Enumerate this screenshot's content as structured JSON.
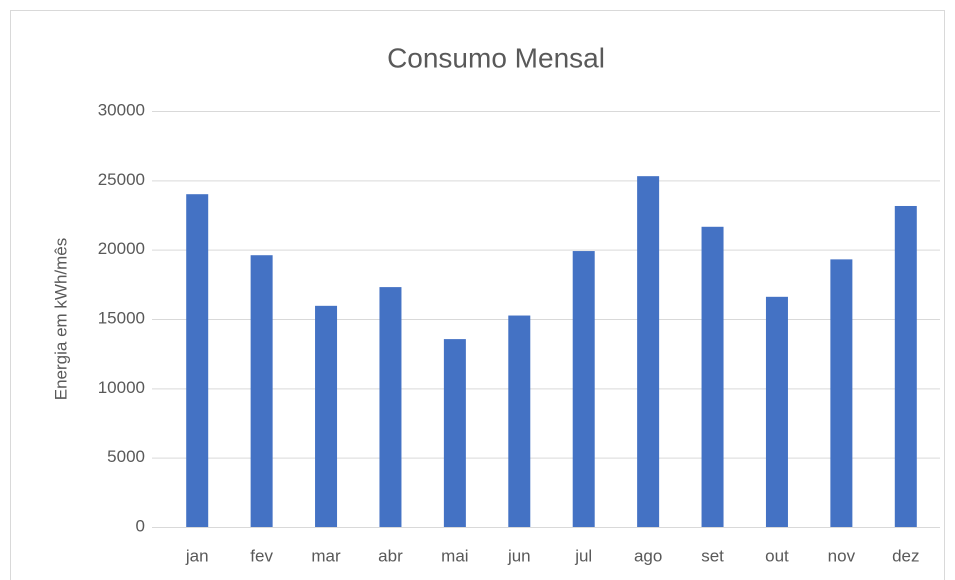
{
  "chart_data": {
    "type": "bar",
    "title": "Consumo Mensal",
    "y_label": "Energia em kWh/mês",
    "categories": [
      "jan",
      "fev",
      "mar",
      "abr",
      "mai",
      "jun",
      "jul",
      "ago",
      "set",
      "out",
      "nov",
      "dez"
    ],
    "values": [
      24000,
      19600,
      15950,
      17300,
      13550,
      15250,
      19900,
      25300,
      21650,
      16600,
      19300,
      23150
    ],
    "color": "#4472c4",
    "ylim": [
      0,
      30000
    ],
    "yticks": [
      0,
      5000,
      10000,
      15000,
      20000,
      25000,
      30000
    ],
    "grid": true
  }
}
